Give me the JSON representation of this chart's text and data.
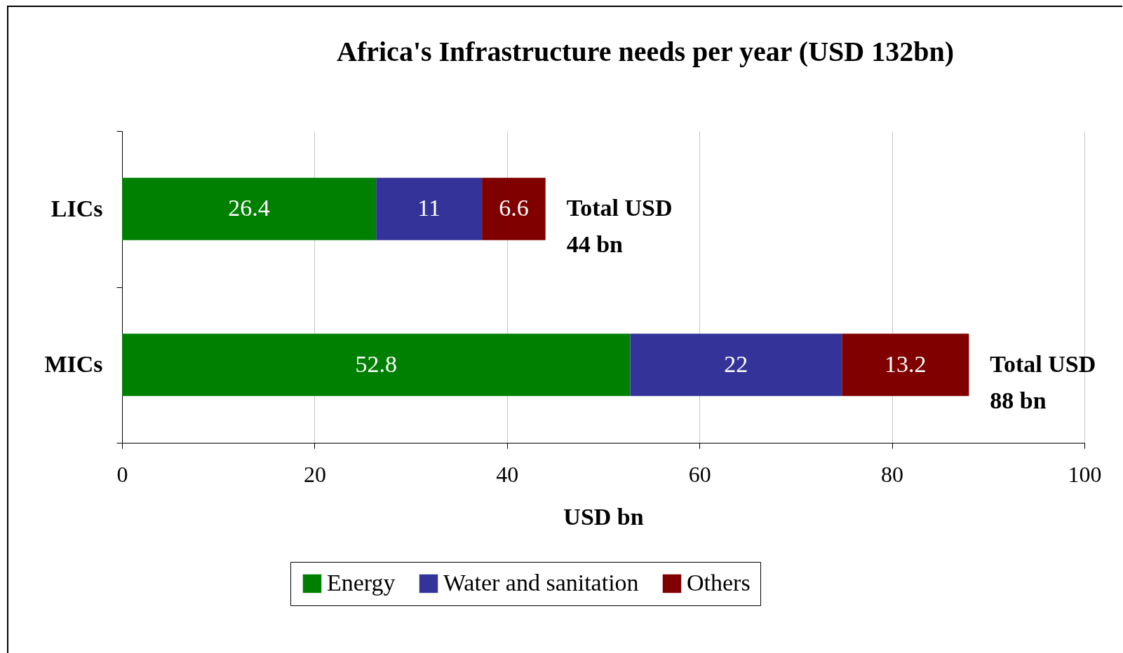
{
  "chart_data": {
    "type": "bar",
    "title": "Africa's Infrastructure needs per year (USD 132bn)",
    "xlabel": "USD bn",
    "orientation": "horizontal",
    "stacked": true,
    "categories": [
      "LICs",
      "MICs"
    ],
    "series": [
      {
        "name": "Energy",
        "color": "#008000",
        "values": [
          26.4,
          52.8
        ]
      },
      {
        "name": "Water and sanitation",
        "color": "#333399",
        "values": [
          11,
          22
        ]
      },
      {
        "name": "Others",
        "color": "#800000",
        "values": [
          6.6,
          13.2
        ]
      }
    ],
    "totals": [
      "Total USD\n44 bn",
      "Total USD\n88 bn"
    ],
    "xlim": [
      0,
      100
    ],
    "xticks": [
      0,
      20,
      40,
      60,
      80,
      100
    ],
    "grid": "x",
    "legend": "bottom",
    "data_labels": true
  }
}
